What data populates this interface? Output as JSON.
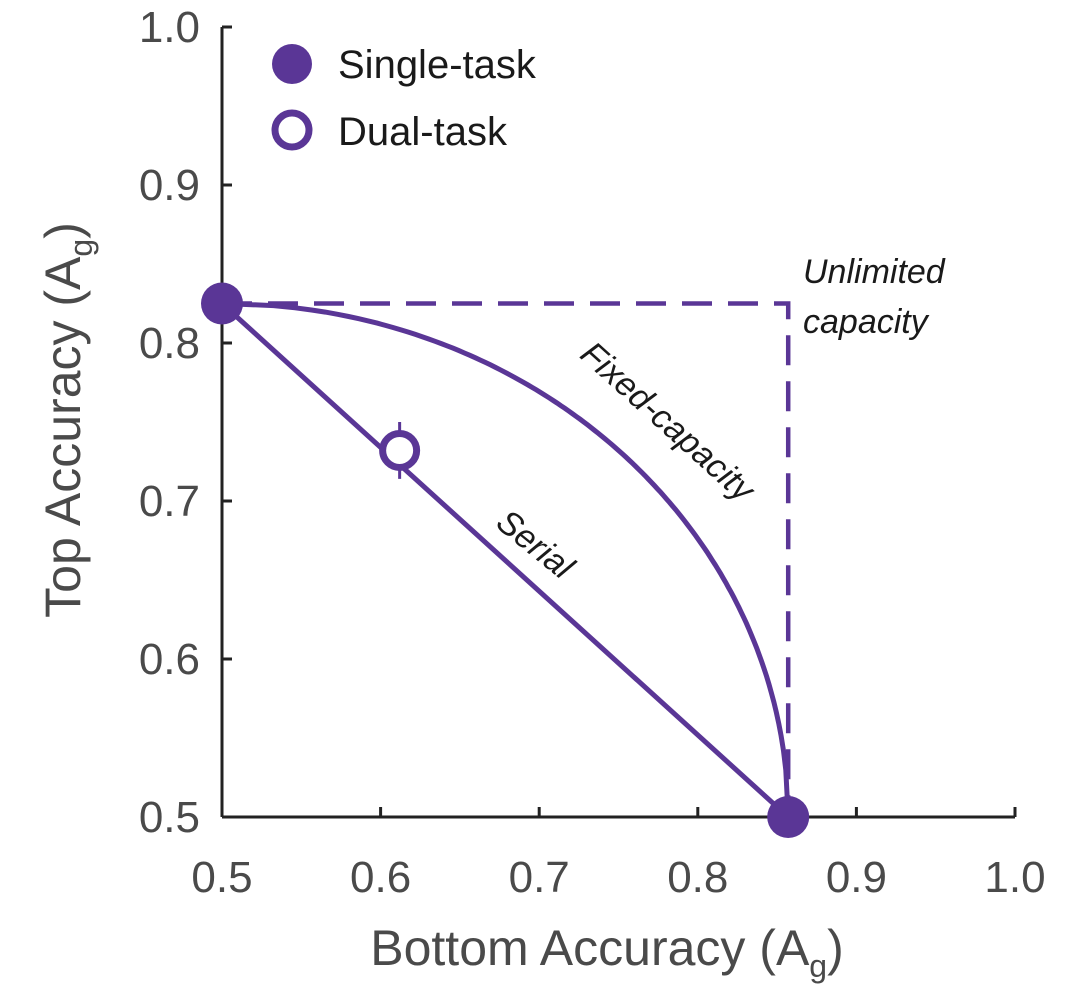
{
  "chart_data": {
    "type": "line",
    "xlabel": "Bottom Accuracy (A",
    "xlabel_sub": "g",
    "xlabel_close": ")",
    "ylabel": "Top Accuracy (A",
    "ylabel_sub": "g",
    "ylabel_close": ")",
    "xlim": [
      0.5,
      1.0
    ],
    "ylim": [
      0.5,
      1.0
    ],
    "xticks": [
      0.5,
      0.6,
      0.7,
      0.8,
      0.9,
      1.0
    ],
    "yticks": [
      0.5,
      0.6,
      0.7,
      0.8,
      0.9,
      1.0
    ],
    "xtick_labels": [
      "0.5",
      "0.6",
      "0.7",
      "0.8",
      "0.9",
      "1.0"
    ],
    "ytick_labels": [
      "0.5",
      "0.6",
      "0.7",
      "0.8",
      "0.9",
      "1.0"
    ],
    "grid": false,
    "legend_position": "top-left",
    "color": "#5a3696",
    "legend": [
      {
        "label": "Single-task",
        "marker": "filled-circle"
      },
      {
        "label": "Dual-task",
        "marker": "open-circle"
      }
    ],
    "single_task_points": [
      {
        "x": 0.5,
        "y": 0.825
      },
      {
        "x": 0.857,
        "y": 0.5
      }
    ],
    "dual_task_point": {
      "x": 0.612,
      "y": 0.732,
      "y_err": 0.018
    },
    "curves": [
      {
        "label": "Serial",
        "style": "solid",
        "shape": "linear",
        "from": {
          "x": 0.5,
          "y": 0.825
        },
        "to": {
          "x": 0.857,
          "y": 0.5
        }
      },
      {
        "label": "Fixed-capacity",
        "style": "solid",
        "shape": "arc",
        "from": {
          "x": 0.5,
          "y": 0.825
        },
        "to": {
          "x": 0.857,
          "y": 0.5
        }
      },
      {
        "label": "Unlimited capacity",
        "label_lines": [
          "Unlimited",
          "capacity"
        ],
        "style": "dashed",
        "shape": "corner",
        "from": {
          "x": 0.5,
          "y": 0.825
        },
        "to": {
          "x": 0.857,
          "y": 0.5
        }
      }
    ]
  }
}
